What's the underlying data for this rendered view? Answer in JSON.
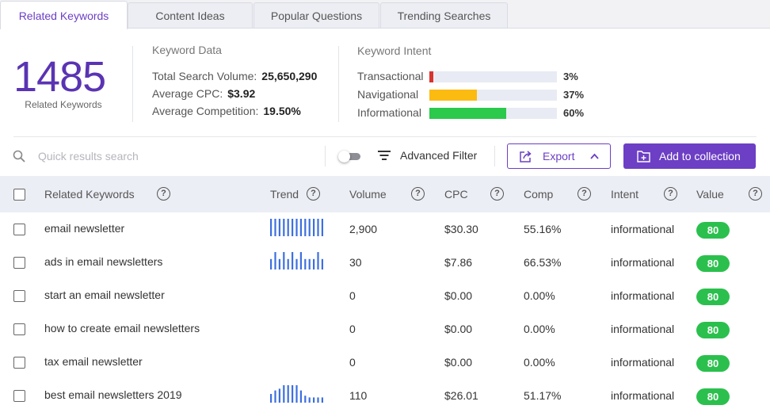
{
  "tabs": [
    {
      "label": "Related Keywords",
      "active": true
    },
    {
      "label": "Content Ideas",
      "active": false
    },
    {
      "label": "Popular Questions",
      "active": false
    },
    {
      "label": "Trending Searches",
      "active": false
    }
  ],
  "summary": {
    "count": "1485",
    "count_label": "Related Keywords"
  },
  "keyword_data": {
    "title": "Keyword Data",
    "total_search_volume_label": "Total Search Volume:",
    "total_search_volume": "25,650,290",
    "avg_cpc_label": "Average CPC:",
    "avg_cpc": "$3.92",
    "avg_competition_label": "Average Competition:",
    "avg_competition": "19.50%"
  },
  "keyword_intent": {
    "title": "Keyword Intent",
    "items": [
      {
        "label": "Transactional",
        "percent": 3,
        "percent_text": "3%",
        "color": "#d8332f"
      },
      {
        "label": "Navigational",
        "percent": 37,
        "percent_text": "37%",
        "color": "#fbbb11"
      },
      {
        "label": "Informational",
        "percent": 60,
        "percent_text": "60%",
        "color": "#2bc94c"
      }
    ]
  },
  "toolbar": {
    "search_placeholder": "Quick results search",
    "advanced_filter_label": "Advanced Filter",
    "export_label": "Export",
    "add_collection_label": "Add to collection"
  },
  "table": {
    "headers": {
      "keyword": "Related Keywords",
      "trend": "Trend",
      "volume": "Volume",
      "cpc": "CPC",
      "comp": "Comp",
      "intent": "Intent",
      "value": "Value"
    },
    "help_glyph": "?",
    "rows": [
      {
        "keyword": "email newsletter",
        "trend": [
          10,
          10,
          10,
          10,
          10,
          10,
          10,
          10,
          10,
          10,
          10,
          10,
          10
        ],
        "volume": "2,900",
        "cpc": "$30.30",
        "comp": "55.16%",
        "intent": "informational",
        "value": "80"
      },
      {
        "keyword": "ads in email newsletters",
        "trend": [
          6,
          10,
          6,
          10,
          6,
          10,
          6,
          10,
          6,
          6,
          6,
          10,
          6
        ],
        "volume": "30",
        "cpc": "$7.86",
        "comp": "66.53%",
        "intent": "informational",
        "value": "80"
      },
      {
        "keyword": "start an email newsletter",
        "trend": [],
        "volume": "0",
        "cpc": "$0.00",
        "comp": "0.00%",
        "intent": "informational",
        "value": "80"
      },
      {
        "keyword": "how to create email newsletters",
        "trend": [],
        "volume": "0",
        "cpc": "$0.00",
        "comp": "0.00%",
        "intent": "informational",
        "value": "80"
      },
      {
        "keyword": "tax email newsletter",
        "trend": [],
        "volume": "0",
        "cpc": "$0.00",
        "comp": "0.00%",
        "intent": "informational",
        "value": "80"
      },
      {
        "keyword": "best email newsletters 2019",
        "trend": [
          5,
          7,
          8,
          10,
          10,
          10,
          10,
          7,
          4,
          3,
          3,
          3,
          3
        ],
        "volume": "110",
        "cpc": "$26.01",
        "comp": "51.17%",
        "intent": "informational",
        "value": "80"
      }
    ]
  },
  "colors": {
    "accent": "#6c3fc5",
    "trend_bar": "#3d6fe0",
    "value_badge": "#2bc04d"
  }
}
